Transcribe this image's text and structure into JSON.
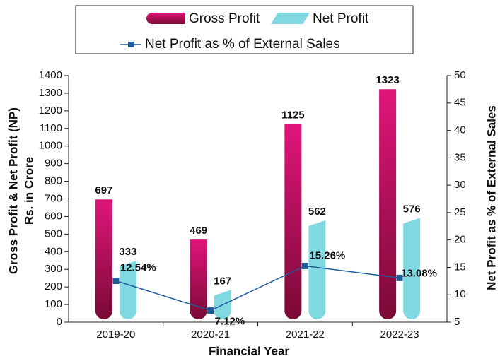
{
  "chart_data": {
    "type": "bar",
    "categories": [
      "2019-20",
      "2020-21",
      "2021-22",
      "2022-23"
    ],
    "series": [
      {
        "name": "Gross Profit",
        "type": "bar",
        "color": "#e0157a",
        "color_dark": "#7a0a35",
        "values": [
          697,
          469,
          1125,
          1323
        ]
      },
      {
        "name": "Net Profit",
        "type": "bar",
        "color": "#80d8e0",
        "values": [
          333,
          167,
          562,
          576
        ]
      },
      {
        "name": "Net Profit as % of External Sales",
        "type": "line",
        "axis": "y2",
        "color": "#1f5a9a",
        "values": [
          12.54,
          7.12,
          15.26,
          13.08
        ],
        "value_labels": [
          "12.54%",
          "7.12%",
          "15.26%",
          "13.08%"
        ]
      }
    ],
    "ylabel": [
      "Gross Profit & Net Profit (NP)",
      "Rs. in Crore"
    ],
    "y2label": "Net Profit as % of External Sales",
    "xlabel": "Financial Year",
    "ylim": [
      0,
      1400
    ],
    "yticks": [
      0,
      100,
      200,
      300,
      400,
      500,
      600,
      700,
      800,
      900,
      1000,
      1100,
      1200,
      1300,
      1400
    ],
    "y2lim": [
      5,
      50
    ],
    "y2ticks": [
      5,
      10,
      15,
      20,
      25,
      30,
      35,
      40,
      45,
      50
    ],
    "legend": "top"
  }
}
